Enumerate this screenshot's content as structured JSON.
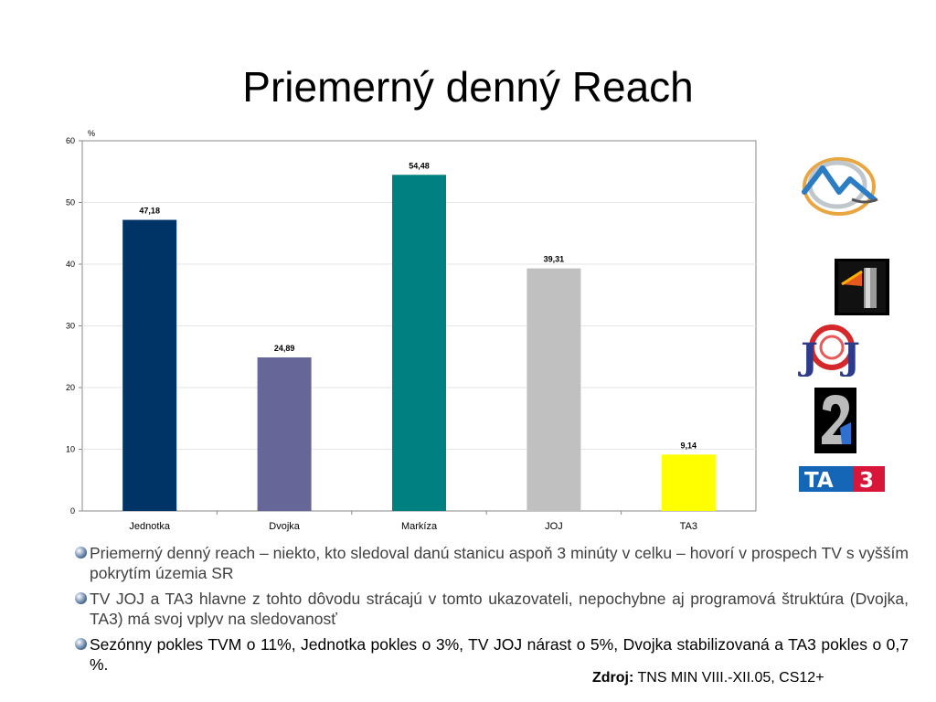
{
  "slide": {
    "title": "Priemerný denný Reach"
  },
  "chart_data": {
    "type": "bar",
    "unit_label": "%",
    "categories": [
      "Jednotka",
      "Dvojka",
      "Markíza",
      "JOJ",
      "TA3"
    ],
    "values": [
      47.18,
      24.89,
      54.48,
      39.31,
      9.14
    ],
    "value_labels": [
      "47,18",
      "24,89",
      "54,48",
      "39,31",
      "9,14"
    ],
    "colors": [
      "#003366",
      "#666699",
      "#008080",
      "#c0c0c0",
      "#ffff00"
    ],
    "ylim": [
      0,
      60
    ],
    "yticks": [
      0,
      10,
      20,
      30,
      40,
      50,
      60
    ],
    "grid": true,
    "legend": "none"
  },
  "logos": [
    {
      "name": "markiza-logo-icon"
    },
    {
      "name": "stv1-logo-icon"
    },
    {
      "name": "joj-logo-icon",
      "text": "JOJ"
    },
    {
      "name": "stv2-logo-icon"
    },
    {
      "name": "ta3-logo-icon",
      "text": "TA3"
    }
  ],
  "bullets": [
    {
      "text": "Priemerný denný reach – niekto, kto sledoval danú stanicu aspoň 3 minúty v celku – hovorí v prospech TV s vyšším pokrytím územia SR"
    },
    {
      "text": "TV JOJ a TA3 hlavne z tohto dôvodu strácajú v tomto ukazovateli, nepochybne aj programová štruktúra (Dvojka, TA3) má svoj vplyv na sledovanosť"
    },
    {
      "text": "Sezónny pokles TVM o 11%, Jednotka pokles o 3%, TV JOJ nárast o 5%, Dvojka stabilizovaná a TA3 pokles o 0,7 %."
    }
  ],
  "source": {
    "label": "Zdroj:",
    "text": "TNS MIN VIII.-XII.05, CS12+"
  }
}
